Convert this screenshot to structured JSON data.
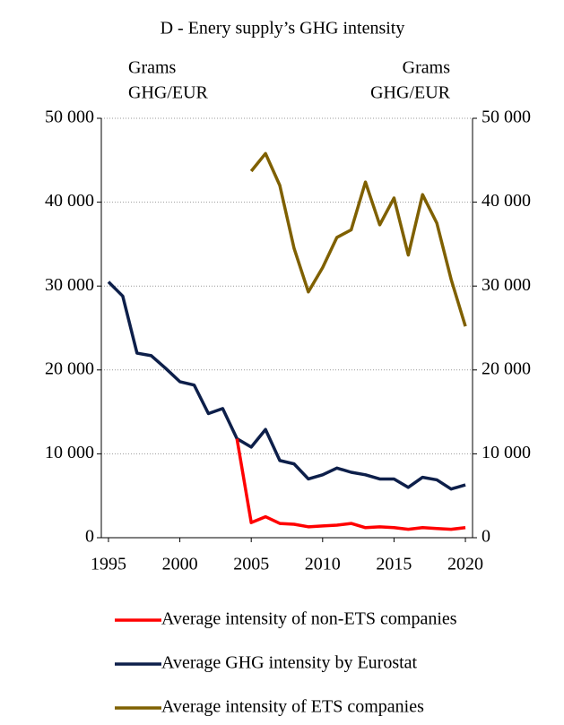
{
  "chart_data": {
    "type": "line",
    "title": "D - Enery supply’s GHG intensity",
    "ylabel_lines": [
      "Grams",
      "GHG/EUR"
    ],
    "y2label_lines": [
      "Grams",
      "GHG/EUR"
    ],
    "x": [
      1995,
      1996,
      1997,
      1998,
      1999,
      2000,
      2001,
      2002,
      2003,
      2004,
      2005,
      2006,
      2007,
      2008,
      2009,
      2010,
      2011,
      2012,
      2013,
      2014,
      2015,
      2016,
      2017,
      2018,
      2019,
      2020
    ],
    "xlim": [
      1994.5,
      2020.5
    ],
    "xticks": [
      1995,
      2000,
      2005,
      2010,
      2015,
      2020
    ],
    "ylim": [
      0,
      50000
    ],
    "yticks": [
      0,
      {
        "value": 10000,
        "label": "10 000"
      },
      {
        "value": 20000,
        "label": "20 000"
      },
      {
        "value": 30000,
        "label": "30 000"
      },
      {
        "value": 40000,
        "label": "40 000"
      },
      {
        "value": 50000,
        "label": "50 000"
      }
    ],
    "y2lim": [
      0,
      50000
    ],
    "y2ticks": [
      0,
      {
        "value": 10000,
        "label": "10 000"
      },
      {
        "value": 20000,
        "label": "20 000"
      },
      {
        "value": 30000,
        "label": "30 000"
      },
      {
        "value": 40000,
        "label": "40 000"
      },
      {
        "value": 50000,
        "label": "50 000"
      }
    ],
    "grid": true,
    "legend": "bottom",
    "series": [
      {
        "name": "Average intensity of non-ETS companies",
        "color": "#ff0000",
        "values": [
          null,
          null,
          null,
          null,
          null,
          null,
          null,
          null,
          null,
          11800,
          1800,
          2500,
          1700,
          1600,
          1300,
          1400,
          1500,
          1700,
          1200,
          1300,
          1200,
          1000,
          1200,
          1100,
          1000,
          1200
        ]
      },
      {
        "name": "Average GHG intensity by Eurostat",
        "color": "#0d1f4a",
        "values": [
          30500,
          28800,
          22000,
          21700,
          20200,
          18600,
          18200,
          14800,
          15400,
          11800,
          10800,
          12900,
          9200,
          8800,
          7000,
          7500,
          8300,
          7800,
          7500,
          7000,
          7000,
          6000,
          7200,
          6900,
          5800,
          6300
        ]
      },
      {
        "name": "Average intensity of ETS companies",
        "color": "#7f6000",
        "axis": "y2",
        "values": [
          null,
          null,
          null,
          null,
          null,
          null,
          null,
          null,
          null,
          null,
          43700,
          45800,
          42000,
          34500,
          29300,
          32200,
          35800,
          36700,
          42400,
          37300,
          40500,
          33700,
          40900,
          37500,
          30800,
          25200
        ]
      }
    ]
  }
}
